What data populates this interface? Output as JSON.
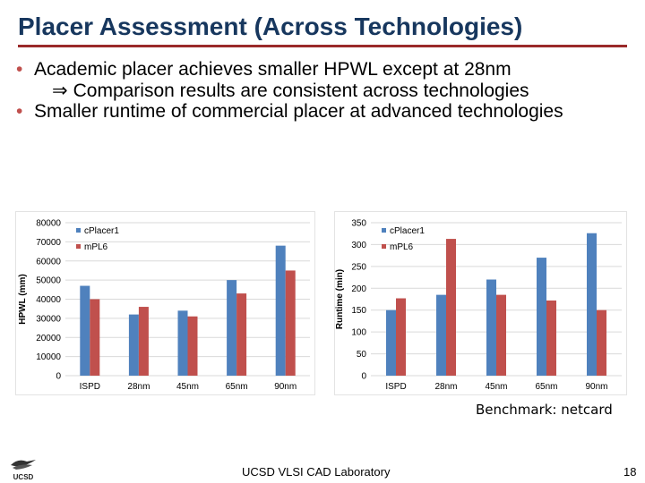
{
  "slide": {
    "title": "Placer Assessment (Across Technologies)",
    "bullets": [
      {
        "text": "Academic placer achieves smaller HPWL except at 28nm",
        "sub": "Comparison results are consistent across technologies"
      },
      {
        "text": "Smaller runtime of commercial placer at advanced technologies"
      }
    ],
    "bullet_symbol": "•",
    "implies_symbol": "⇒",
    "note": "Benchmark: netcard",
    "footer": "UCSD VLSI CAD Laboratory",
    "page_number": "18",
    "logo_text": "UCSD"
  },
  "colors": {
    "title": "#17375e",
    "rule": "#9a2a2a",
    "series1": "#4f81bd",
    "series2": "#c0504d",
    "grid": "#d9d9d9"
  },
  "chart_data": [
    {
      "id": "hpwl",
      "type": "bar",
      "categories": [
        "ISPD",
        "28nm",
        "45nm",
        "65nm",
        "90nm"
      ],
      "ylabel": "HPWL (mm)",
      "ylim": [
        0,
        80000
      ],
      "yticks": [
        "0",
        "10000",
        "20000",
        "30000",
        "40000",
        "50000",
        "60000",
        "70000",
        "80000"
      ],
      "legend": "top-left",
      "grid": true,
      "series": [
        {
          "name": "cPlacer1",
          "values": [
            47000,
            32000,
            34000,
            50000,
            68000
          ]
        },
        {
          "name": "mPL6",
          "values": [
            40000,
            36000,
            31000,
            43000,
            55000
          ]
        }
      ]
    },
    {
      "id": "runtime",
      "type": "bar",
      "categories": [
        "ISPD",
        "28nm",
        "45nm",
        "65nm",
        "90nm"
      ],
      "ylabel": "Runtime (min)",
      "ylim": [
        0,
        350
      ],
      "yticks": [
        "0",
        "50",
        "100",
        "150",
        "200",
        "250",
        "300",
        "350"
      ],
      "legend": "top-left",
      "grid": true,
      "series": [
        {
          "name": "cPlacer1",
          "values": [
            150,
            185,
            220,
            270,
            326
          ]
        },
        {
          "name": "mPL6",
          "values": [
            177,
            313,
            185,
            172,
            150
          ]
        }
      ]
    }
  ]
}
